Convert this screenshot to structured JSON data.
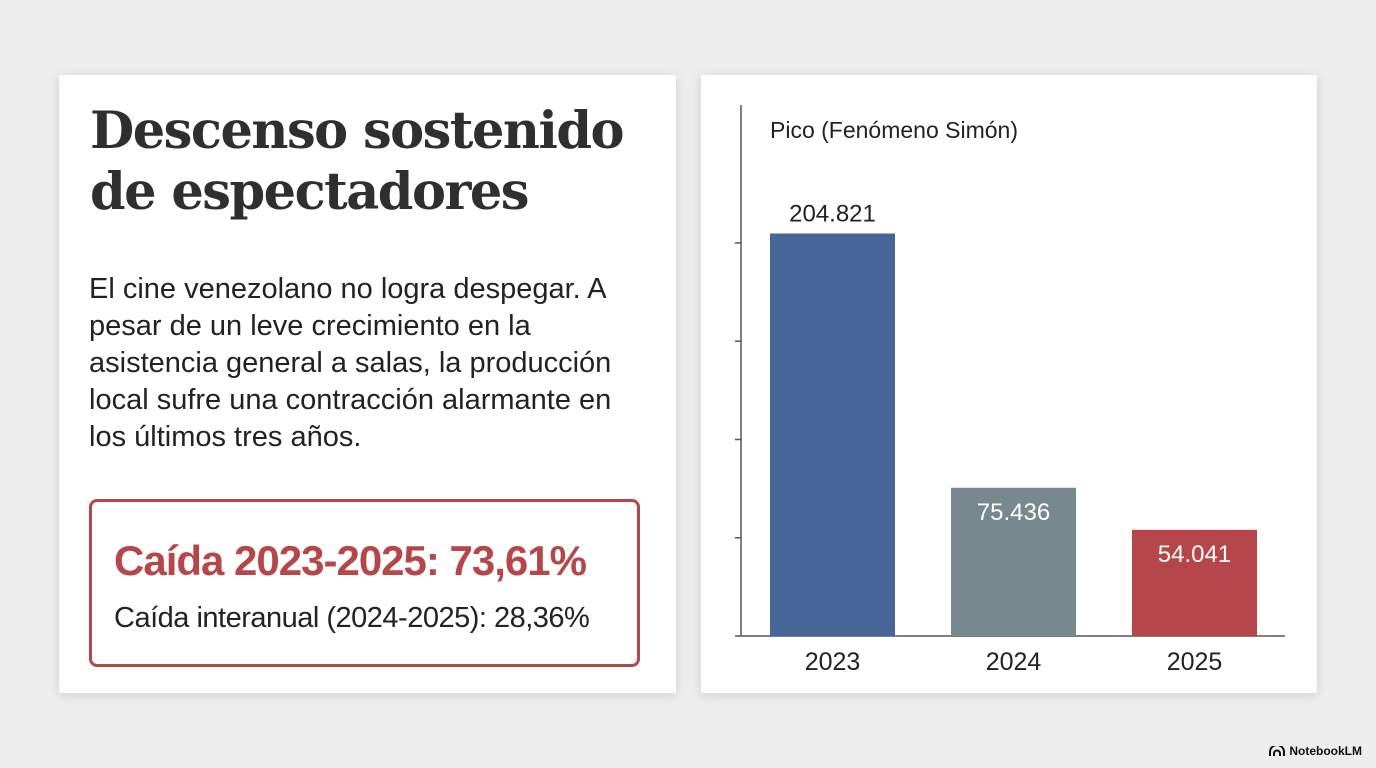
{
  "left_panel": {
    "title": "Descenso sostenido de espectadores",
    "body": "El cine venezolano no logra despegar. A pesar de un leve crecimiento en la asistencia general a salas, la producción local sufre una contracción alarmante en los últimos tres años.",
    "stat_main": "Caída 2023-2025: 73,61%",
    "stat_sub": "Caída interanual (2024-2025): 28,36%"
  },
  "chart_data": {
    "type": "bar",
    "categories": [
      "2023",
      "2024",
      "2025"
    ],
    "values": [
      204821,
      75436,
      54041
    ],
    "value_labels": [
      "204.821",
      "75.436",
      "54.041"
    ],
    "annotation": "Pico (Fenómeno Simón)",
    "ylim": [
      0,
      230000
    ],
    "colors": [
      "#46669a",
      "#78888f",
      "#b5474a"
    ],
    "grid": false,
    "legend": "none"
  },
  "brand": {
    "name": "NotebookLM",
    "icon": "notebooklm-logo-icon"
  }
}
